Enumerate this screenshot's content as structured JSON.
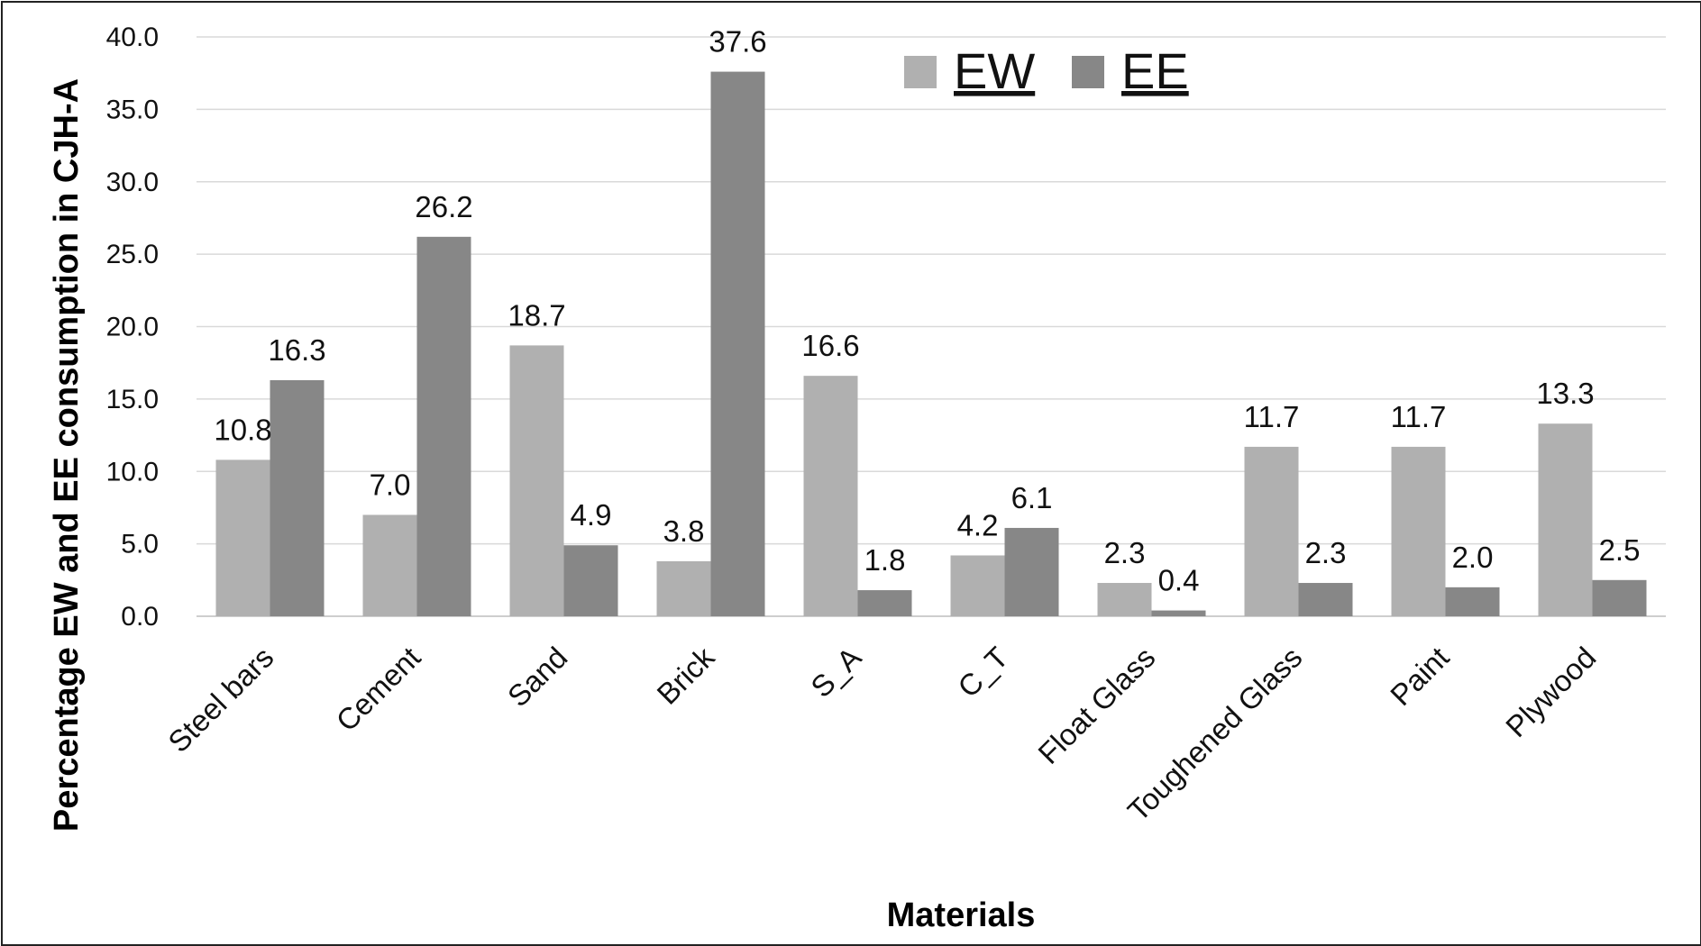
{
  "chart_data": {
    "type": "bar",
    "categories": [
      "Steel bars",
      "Cement",
      "Sand",
      "Brick",
      "S_A",
      "C_T",
      "Float Glass",
      "Toughened Glass",
      "Paint",
      "Plywood"
    ],
    "series": [
      {
        "name": "EW",
        "color": "#b0b0b0",
        "values": [
          10.8,
          7.0,
          18.7,
          3.8,
          16.6,
          4.2,
          2.3,
          11.7,
          11.7,
          13.3
        ]
      },
      {
        "name": "EE",
        "color": "#878787",
        "values": [
          16.3,
          26.2,
          4.9,
          37.6,
          1.8,
          6.1,
          0.4,
          2.3,
          2.0,
          2.5
        ]
      }
    ],
    "value_labels": {
      "EW": [
        "10.8",
        "7.0",
        "18.7",
        "3.8",
        "16.6",
        "4.2",
        "2.3",
        "11.7",
        "11.7",
        "13.3"
      ],
      "EE": [
        "16.3",
        "26.2",
        "4.9",
        "37.6",
        "1.8",
        "6.1",
        "0.4",
        "2.3",
        "2.0",
        "2.5"
      ]
    },
    "xlabel": "Materials",
    "ylabel": "Percentage EW and EE consumption in CJH-A",
    "ylim": [
      0,
      40
    ],
    "yticks": [
      "0.0",
      "5.0",
      "10.0",
      "15.0",
      "20.0",
      "25.0",
      "30.0",
      "35.0",
      "40.0"
    ],
    "grid": true,
    "legend_position": "top-center"
  }
}
